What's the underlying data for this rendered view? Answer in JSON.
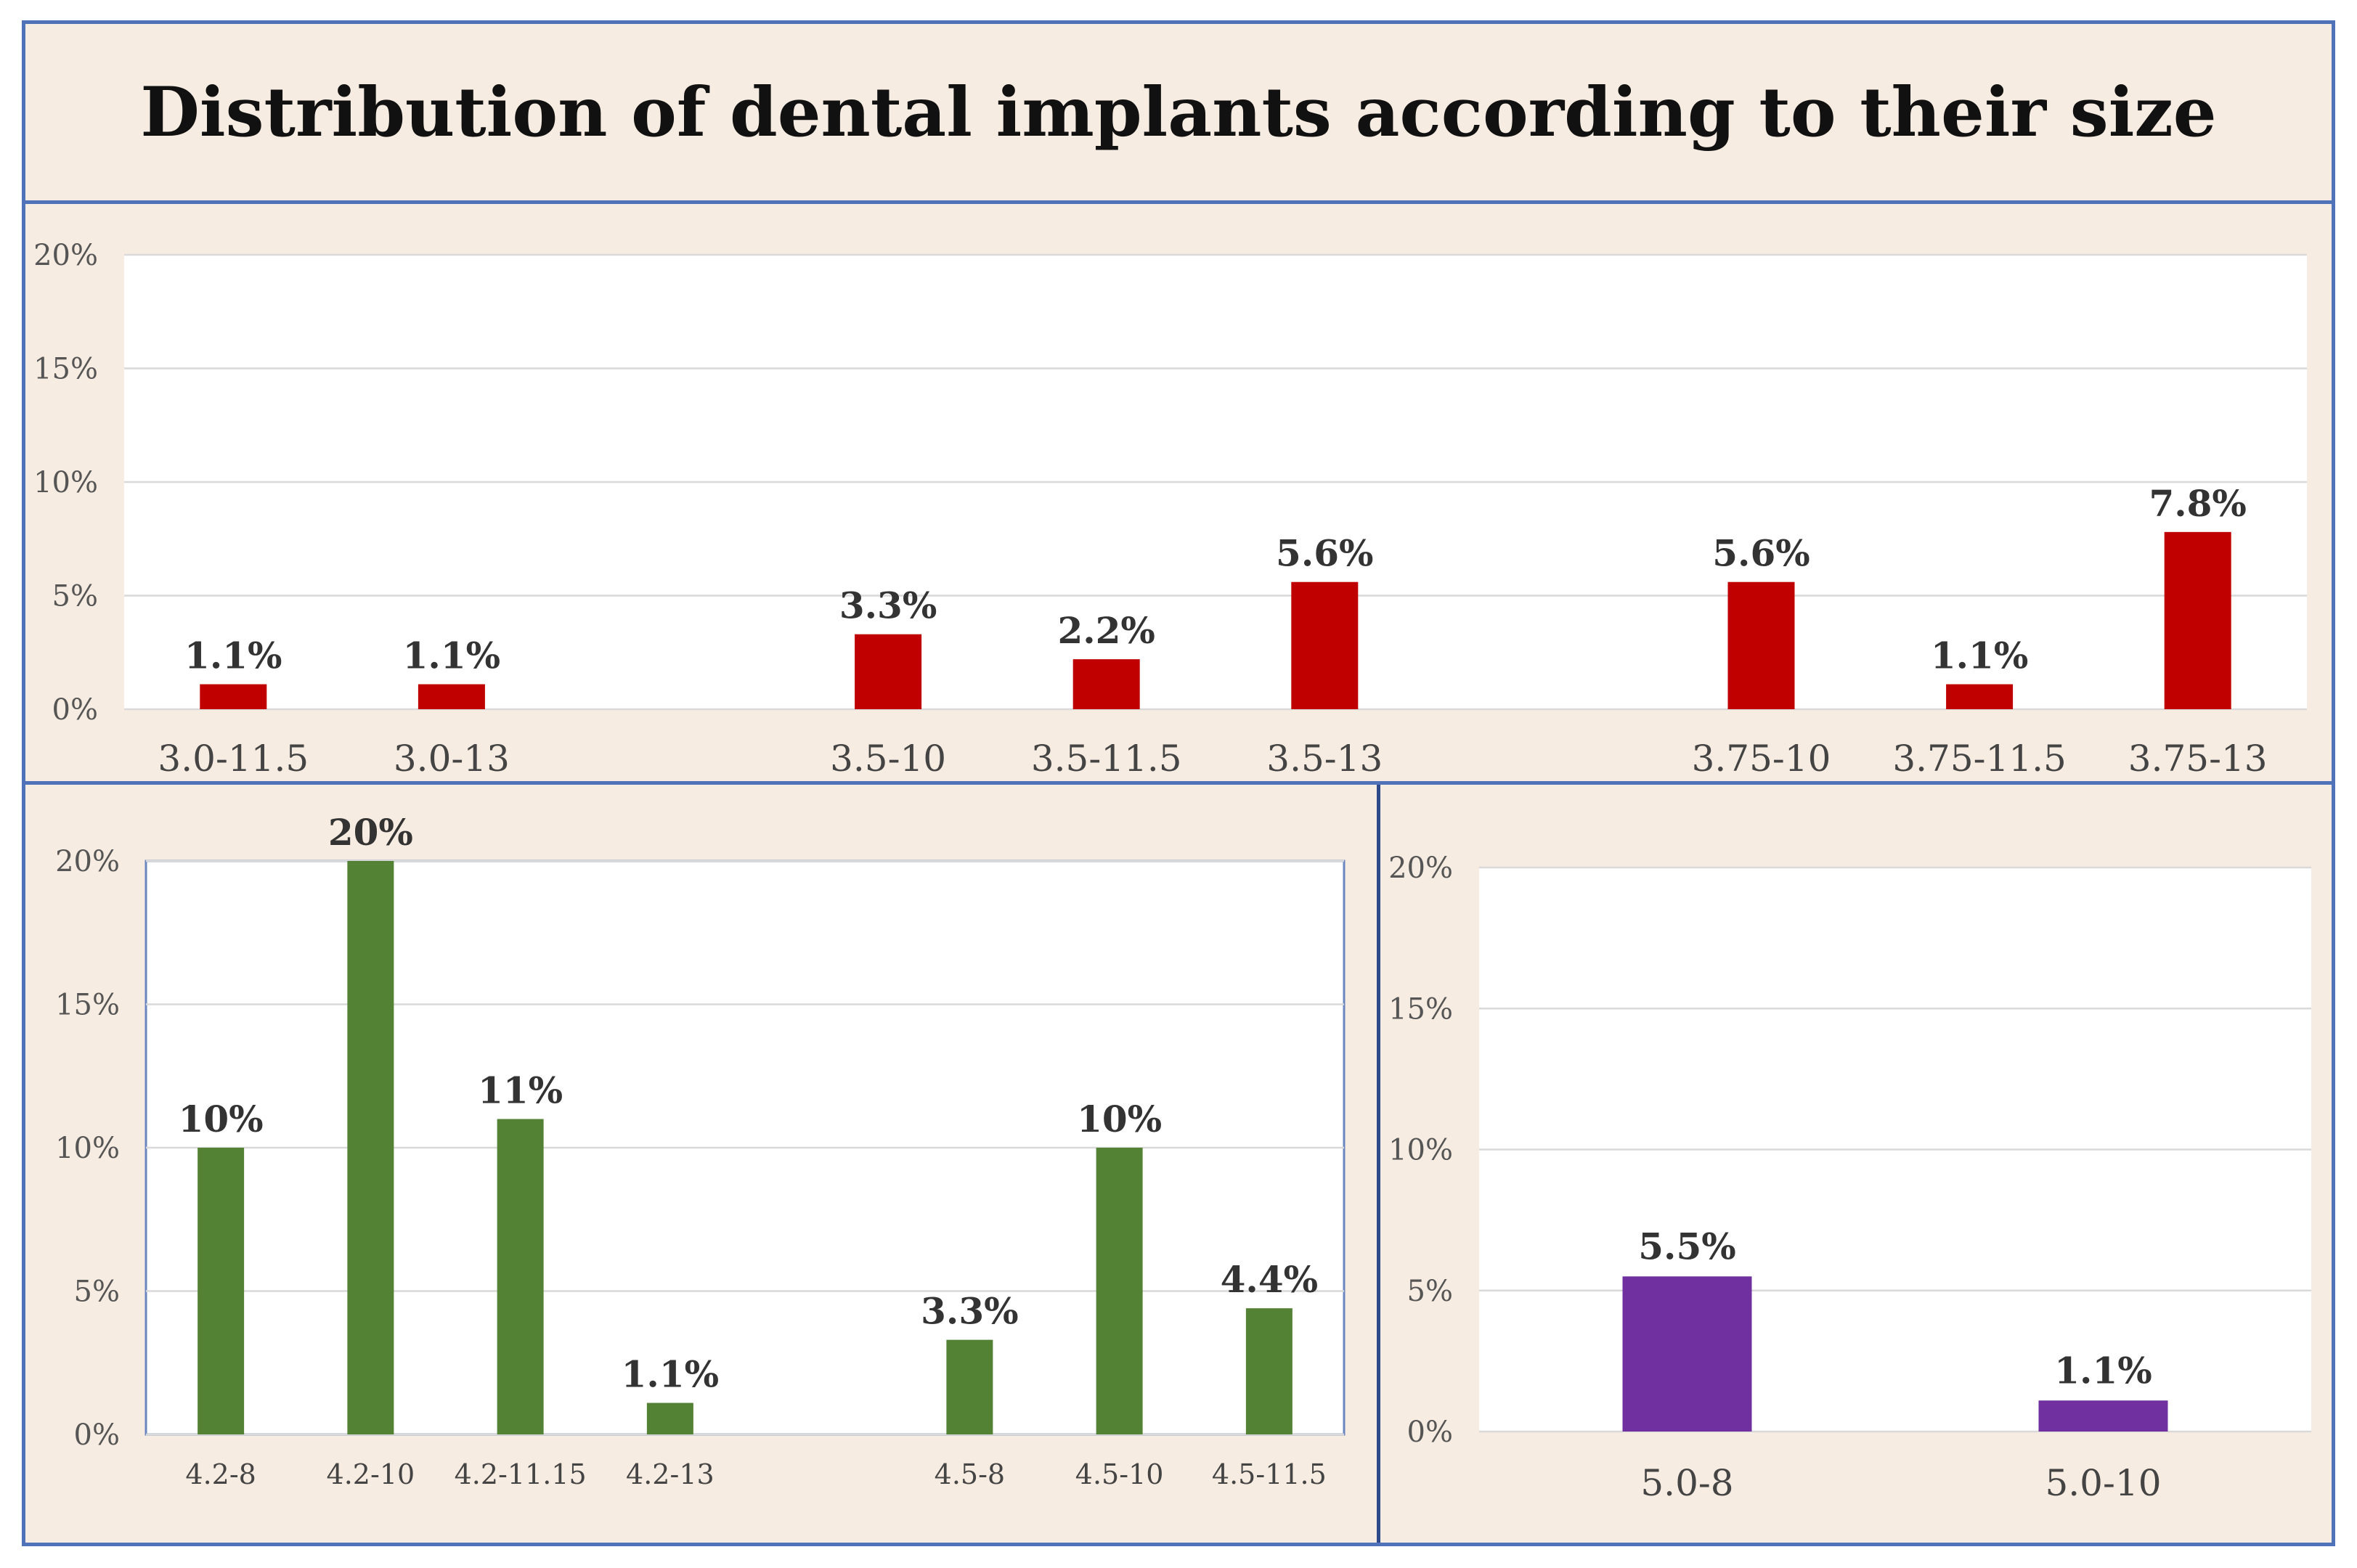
{
  "title": "Distribution of dental implants according to their size",
  "chart_data": [
    {
      "type": "bar",
      "id": "top",
      "color": "#c00000",
      "categories": [
        "3.0-11.5",
        "3.0-13",
        "",
        "3.5-10",
        "3.5-11.5",
        "3.5-13",
        "",
        "3.75-10",
        "3.75-11.5",
        "3.75-13"
      ],
      "values": [
        1.1,
        1.1,
        null,
        3.3,
        2.2,
        5.6,
        null,
        5.6,
        1.1,
        7.8
      ],
      "data_labels": [
        "1.1%",
        "1.1%",
        "",
        "3.3%",
        "2.2%",
        "5.6%",
        "",
        "5.6%",
        "1.1%",
        "7.8%"
      ],
      "y_ticks": [
        "0%",
        "5%",
        "10%",
        "15%",
        "20%"
      ],
      "ylim": [
        0,
        20
      ],
      "grid": true
    },
    {
      "type": "bar",
      "id": "bottom-left",
      "color": "#548235",
      "categories": [
        "4.2-8",
        "4.2-10",
        "4.2-11.15",
        "4.2-13",
        "",
        "4.5-8",
        "4.5-10",
        "4.5-11.5"
      ],
      "values": [
        10,
        20,
        11,
        1.1,
        null,
        3.3,
        10,
        4.4
      ],
      "data_labels": [
        "10%",
        "20%",
        "11%",
        "1.1%",
        "",
        "3.3%",
        "10%",
        "4.4%"
      ],
      "y_ticks": [
        "0%",
        "5%",
        "10%",
        "15%",
        "20%"
      ],
      "ylim": [
        0,
        20
      ],
      "grid": true
    },
    {
      "type": "bar",
      "id": "bottom-right",
      "color": "#7030a0",
      "categories": [
        "5.0-8",
        "5.0-10"
      ],
      "values": [
        5.5,
        1.1
      ],
      "data_labels": [
        "5.5%",
        "1.1%"
      ],
      "y_ticks": [
        "0%",
        "5%",
        "10%",
        "15%",
        "20%"
      ],
      "ylim": [
        0,
        20
      ],
      "grid": true
    }
  ]
}
